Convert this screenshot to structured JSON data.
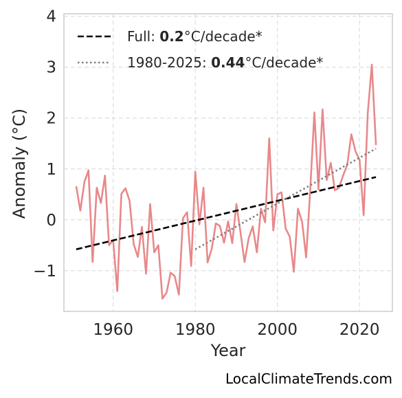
{
  "chart_data": {
    "type": "line",
    "xlabel": "Year",
    "ylabel": "Anomaly (°C)",
    "xlim": [
      1948,
      2028
    ],
    "ylim": [
      -1.8,
      4.05
    ],
    "x_ticks": [
      1960,
      1980,
      2000,
      2020
    ],
    "y_ticks": [
      -1,
      0,
      1,
      2,
      3,
      4
    ],
    "y_tick_labels": [
      "−1",
      "0",
      "1",
      "2",
      "3",
      "4"
    ],
    "grid": true,
    "legend_position": "upper-left",
    "colors": {
      "anomaly": "#e8888a",
      "full_trend": "#000000",
      "recent_trend": "#808080",
      "grid": "#dddddd",
      "frame": "#cccccc"
    },
    "series": [
      {
        "x": [
          1951,
          1952,
          1953,
          1954,
          1955,
          1956,
          1957,
          1958,
          1959,
          1960,
          1961,
          1962,
          1963,
          1964,
          1965,
          1966,
          1967,
          1968,
          1969,
          1970,
          1971,
          1972,
          1973,
          1974,
          1975,
          1976,
          1977,
          1978,
          1979,
          1980,
          1981,
          1982,
          1983,
          1984,
          1985,
          1986,
          1987,
          1988,
          1989,
          1990,
          1991,
          1992,
          1993,
          1994,
          1995,
          1996,
          1997,
          1998,
          1999,
          2000,
          2001,
          2002,
          2003,
          2004,
          2005,
          2006,
          2007,
          2008,
          2009,
          2010,
          2011,
          2012,
          2013,
          2014,
          2015,
          2016,
          2017,
          2018,
          2019,
          2020,
          2021,
          2022,
          2023,
          2024
        ],
        "values": [
          0.66,
          0.18,
          0.75,
          0.97,
          -0.83,
          0.63,
          0.33,
          0.87,
          -0.5,
          -0.4,
          -1.4,
          0.51,
          0.62,
          0.37,
          -0.48,
          -0.73,
          -0.14,
          -1.06,
          0.31,
          -0.64,
          -0.5,
          -1.55,
          -1.43,
          -1.04,
          -1.11,
          -1.47,
          0.03,
          0.15,
          -0.91,
          0.95,
          -0.09,
          0.63,
          -0.84,
          -0.57,
          -0.07,
          -0.12,
          -0.45,
          -0.03,
          -0.46,
          0.31,
          -0.24,
          -0.83,
          -0.36,
          -0.13,
          -0.64,
          0.22,
          -0.05,
          1.6,
          -0.21,
          0.5,
          0.54,
          -0.17,
          -0.33,
          -1.02,
          0.22,
          -0.04,
          -0.74,
          0.6,
          2.11,
          0.6,
          2.17,
          0.78,
          1.12,
          0.58,
          0.63,
          0.87,
          1.08,
          1.68,
          1.35,
          1.18,
          0.09,
          2.1,
          3.05,
          1.47
        ]
      },
      {
        "name": "Full: 0.2°C/decade*",
        "x": [
          1951,
          2024
        ],
        "values": [
          -0.58,
          0.84
        ]
      },
      {
        "name": "1980-2025: 0.44°C/decade*",
        "x": [
          1980,
          2024
        ],
        "values": [
          -0.58,
          1.4
        ]
      }
    ],
    "legend": [
      {
        "prefix": "Full: ",
        "bold": "0.2",
        "suffix": "°C/decade*"
      },
      {
        "prefix": "1980-2025: ",
        "bold": "0.44",
        "suffix": "°C/decade*"
      }
    ]
  },
  "credit": "LocalClimateTrends.com"
}
